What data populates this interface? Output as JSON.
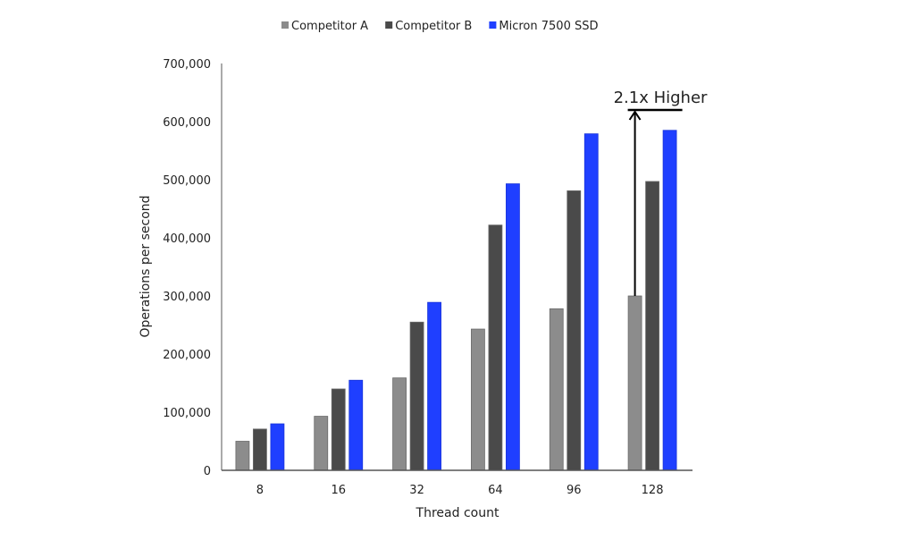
{
  "chart_data": {
    "type": "bar",
    "title": "",
    "xlabel": "Thread count",
    "ylabel": "Operations per second",
    "categories": [
      "8",
      "16",
      "32",
      "64",
      "96",
      "128"
    ],
    "ylim": [
      0,
      700000
    ],
    "yticks": [
      0,
      100000,
      200000,
      300000,
      400000,
      500000,
      600000,
      700000
    ],
    "ytick_labels": [
      "0",
      "100,000",
      "200,000",
      "300,000",
      "400,000",
      "500,000",
      "600,000",
      "700,000"
    ],
    "grid": false,
    "legend_position": "top",
    "series": [
      {
        "name": "Competitor A",
        "color": "#8c8c8c",
        "values": [
          50000,
          93000,
          159000,
          243000,
          278000,
          300000
        ]
      },
      {
        "name": "Competitor B",
        "color": "#4a4a4a",
        "values": [
          71000,
          140000,
          255000,
          422000,
          481000,
          497000
        ]
      },
      {
        "name": "Micron 7500 SSD",
        "color": "#1f3fff",
        "values": [
          80000,
          155000,
          289000,
          493000,
          579000,
          585000
        ]
      }
    ],
    "annotation": {
      "text": "2.1x Higher",
      "category": "128",
      "from": 300000,
      "to": 620000
    }
  }
}
